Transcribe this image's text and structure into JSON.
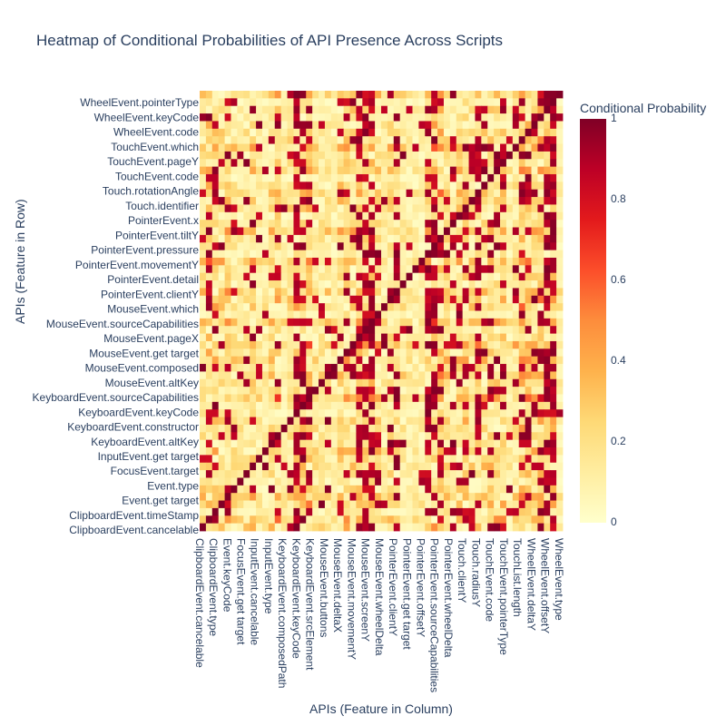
{
  "chart_data": {
    "type": "heatmap",
    "title": "Heatmap of Conditional Probabilities of API Presence Across Scripts",
    "xlabel": "APIs (Feature in Column)",
    "ylabel": "APIs (Feature in Row)",
    "y_tick_labels": [
      "WheelEvent.pointerType",
      "WheelEvent.keyCode",
      "WheelEvent.code",
      "TouchEvent.which",
      "TouchEvent.pageY",
      "TouchEvent.code",
      "Touch.rotationAngle",
      "Touch.identifier",
      "PointerEvent.x",
      "PointerEvent.tiltY",
      "PointerEvent.pressure",
      "PointerEvent.movementY",
      "PointerEvent.detail",
      "PointerEvent.clientY",
      "MouseEvent.which",
      "MouseEvent.sourceCapabilities",
      "MouseEvent.pageX",
      "MouseEvent.get target",
      "MouseEvent.composed",
      "MouseEvent.altKey",
      "KeyboardEvent.sourceCapabilities",
      "KeyboardEvent.keyCode",
      "KeyboardEvent.constructor",
      "KeyboardEvent.altKey",
      "InputEvent.get target",
      "FocusEvent.target",
      "Event.type",
      "Event.get target",
      "ClipboardEvent.timeStamp",
      "ClipboardEvent.cancelable"
    ],
    "x_tick_labels": [
      "ClipboardEvent.cancelable",
      "ClipboardEvent.type",
      "Event.keyCode",
      "FocusEvent.get target",
      "InputEvent.cancelable",
      "InputEvent.type",
      "KeyboardEvent.composedPath",
      "KeyboardEvent.keyCode",
      "KeyboardEvent.srcElement",
      "MouseEvent.buttons",
      "MouseEvent.deltaX",
      "MouseEvent.movementY",
      "MouseEvent.screenY",
      "MouseEvent.wheelDelta",
      "PointerEvent.clientY",
      "PointerEvent.get target",
      "PointerEvent.offsetY",
      "PointerEvent.sourceCapabilities",
      "PointerEvent.wheelDelta",
      "Touch.clientY",
      "Touch.radiusY",
      "TouchEvent.code",
      "TouchEvent.pointerType",
      "TouchList.length",
      "WheelEvent.deltaY",
      "WheelEvent.offsetY",
      "WheelEvent.type"
    ],
    "colorbar": {
      "title": "Conditional Probability",
      "range": [
        0,
        1
      ],
      "ticks": [
        0,
        0.2,
        0.4,
        0.6,
        0.8,
        1
      ]
    },
    "colorscale": [
      "#ffffcc",
      "#ffeda0",
      "#fed976",
      "#feb24c",
      "#fd8d3c",
      "#fc4e2a",
      "#e31a1c",
      "#bd0026",
      "#800026"
    ],
    "grid": false
  }
}
